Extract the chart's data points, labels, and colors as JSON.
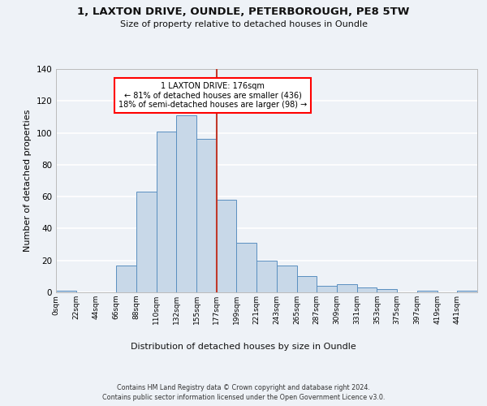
{
  "title1": "1, LAXTON DRIVE, OUNDLE, PETERBOROUGH, PE8 5TW",
  "title2": "Size of property relative to detached houses in Oundle",
  "xlabel": "Distribution of detached houses by size in Oundle",
  "ylabel": "Number of detached properties",
  "bar_labels": [
    "0sqm",
    "22sqm",
    "44sqm",
    "66sqm",
    "88sqm",
    "110sqm",
    "132sqm",
    "155sqm",
    "177sqm",
    "199sqm",
    "221sqm",
    "243sqm",
    "265sqm",
    "287sqm",
    "309sqm",
    "331sqm",
    "353sqm",
    "375sqm",
    "397sqm",
    "419sqm",
    "441sqm"
  ],
  "bar_values": [
    1,
    0,
    0,
    17,
    63,
    101,
    111,
    96,
    58,
    31,
    20,
    17,
    10,
    4,
    5,
    3,
    2,
    0,
    1,
    0,
    1
  ],
  "bar_color": "#c8d8e8",
  "bar_edge_color": "#5a8fc0",
  "property_line_x": 176,
  "bin_width": 22,
  "annotation_text": "1 LAXTON DRIVE: 176sqm\n← 81% of detached houses are smaller (436)\n18% of semi-detached houses are larger (98) →",
  "annotation_box_color": "white",
  "annotation_box_edge_color": "red",
  "vline_color": "#c0392b",
  "ylim": [
    0,
    140
  ],
  "yticks": [
    0,
    20,
    40,
    60,
    80,
    100,
    120,
    140
  ],
  "bg_color": "#eef2f7",
  "grid_color": "white",
  "footer1": "Contains HM Land Registry data © Crown copyright and database right 2024.",
  "footer2": "Contains public sector information licensed under the Open Government Licence v3.0."
}
